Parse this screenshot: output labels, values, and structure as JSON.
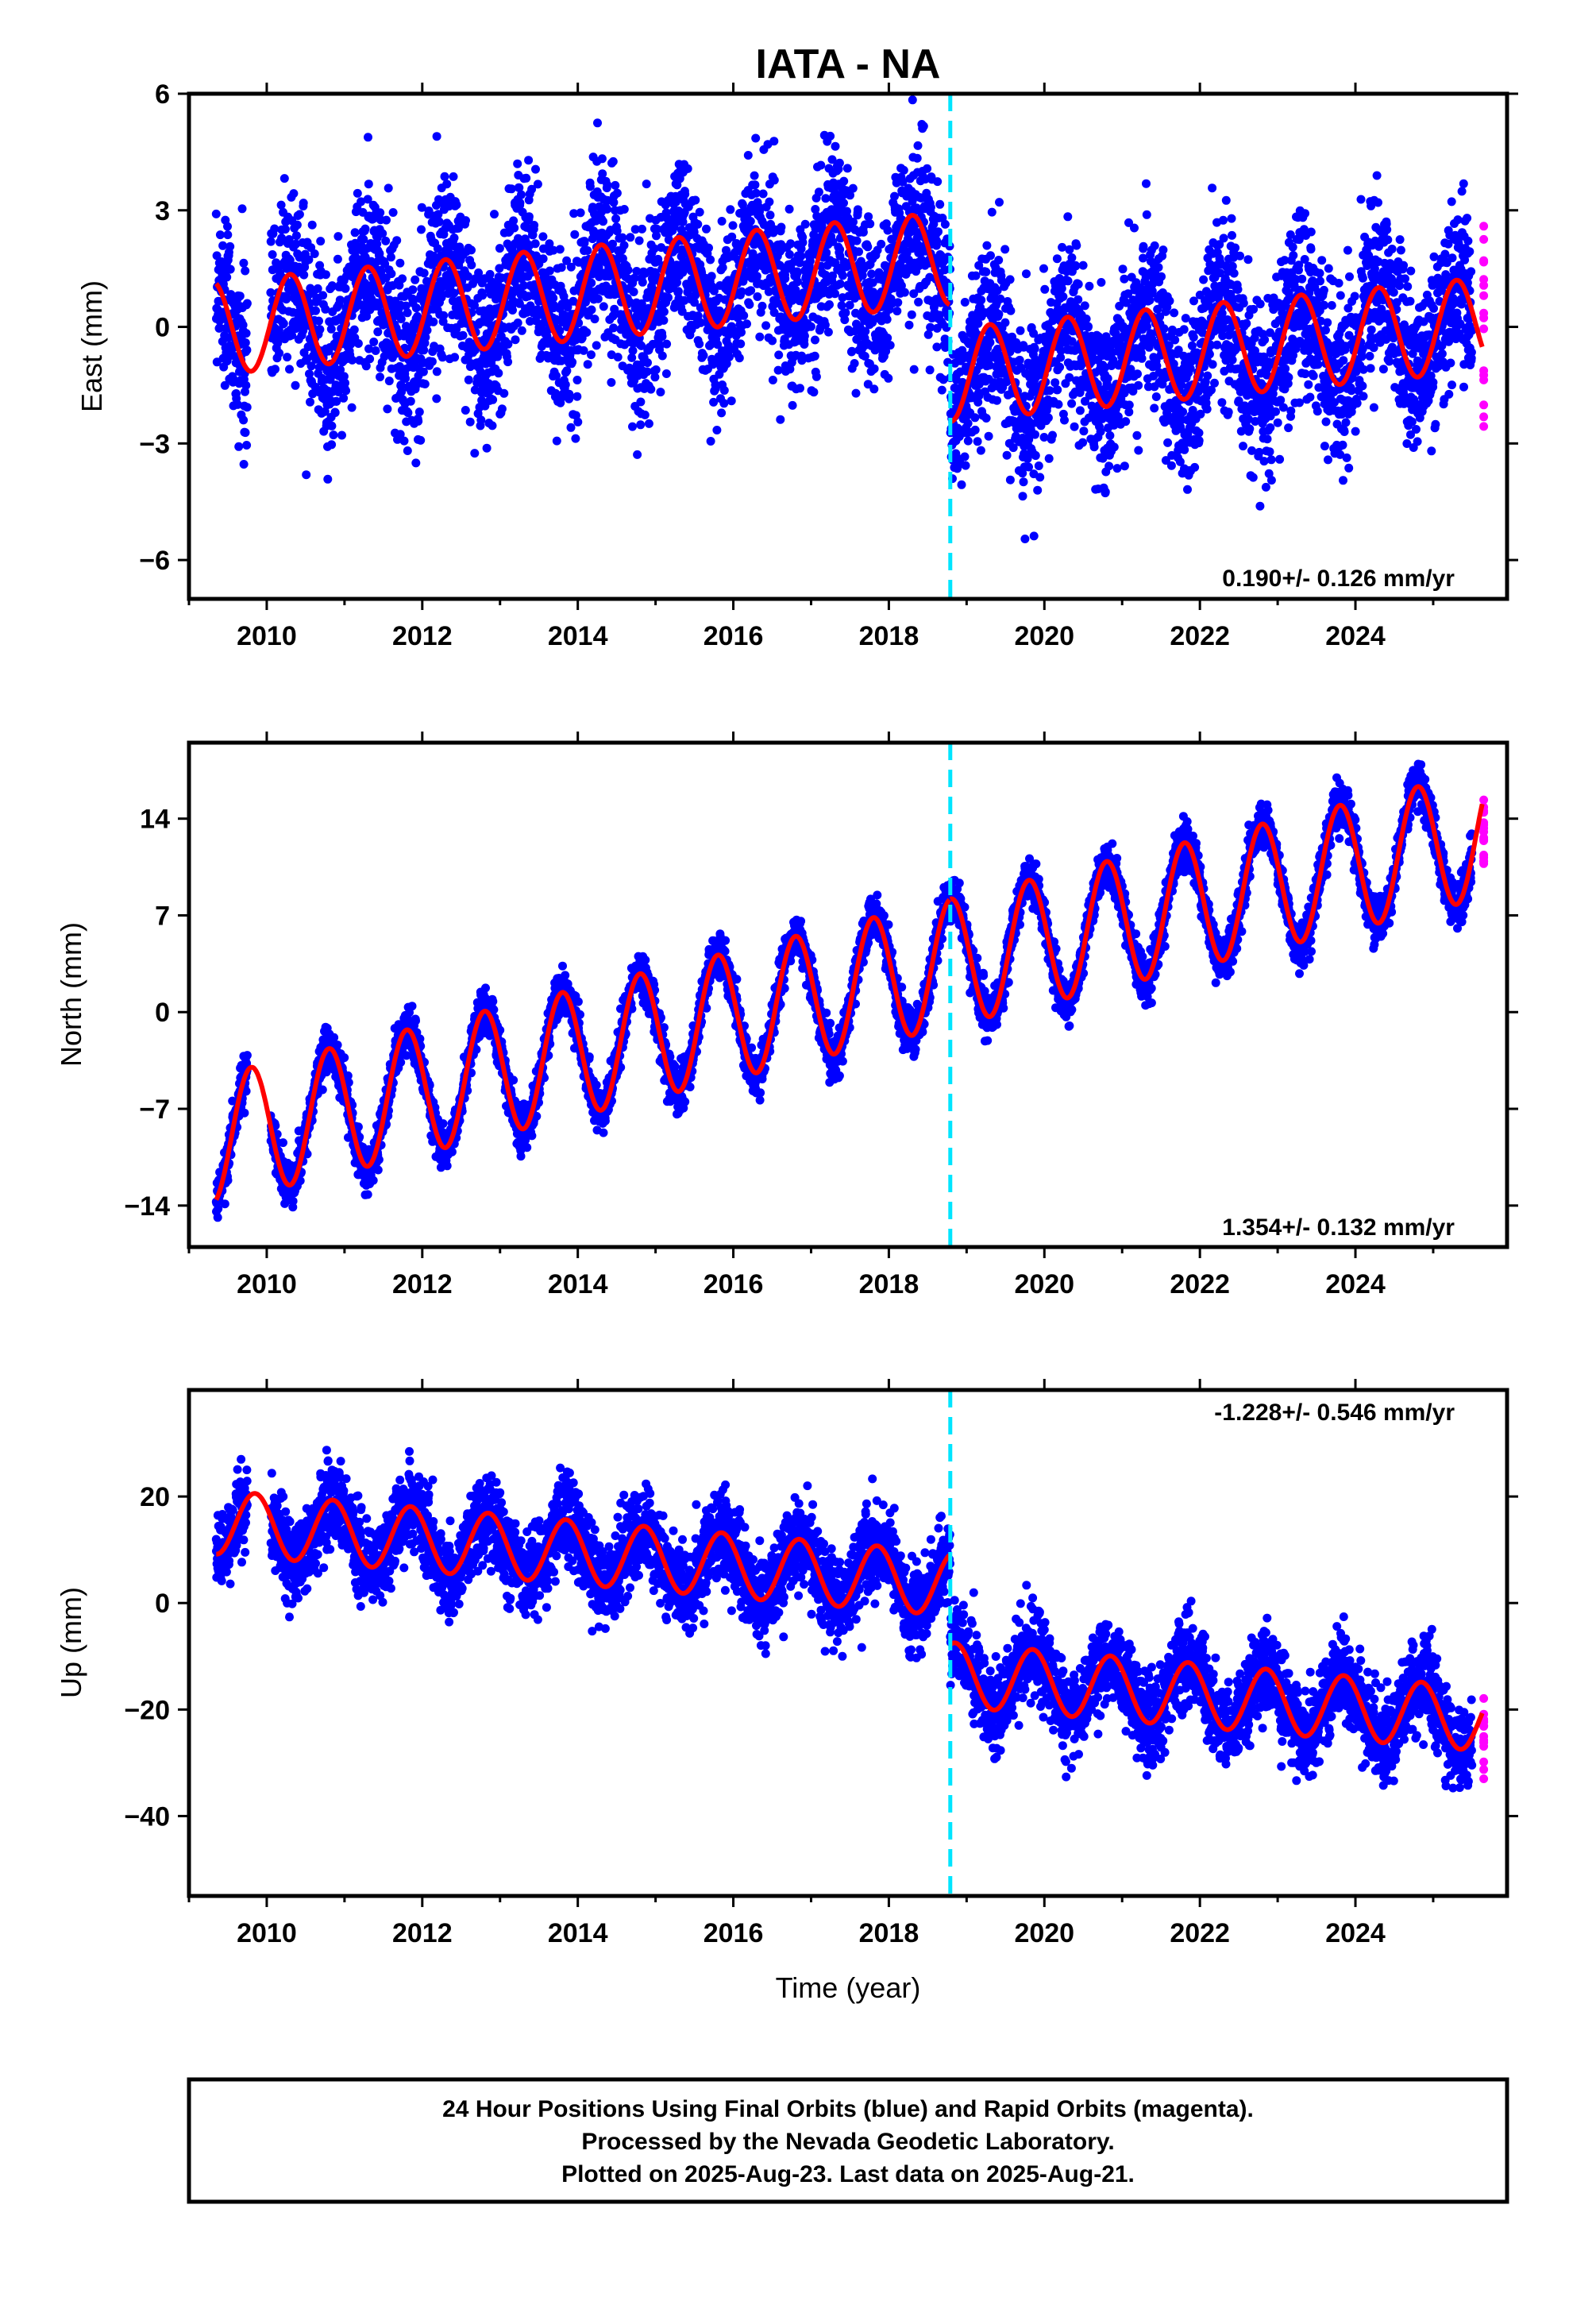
{
  "title": "IATA - NA",
  "colors": {
    "final_orbits": "#0000ff",
    "rapid_orbits": "#ff00ff",
    "model_fit": "#ff0000",
    "equipment_change": "#00e5ff"
  },
  "chart_data": [
    {
      "type": "scatter",
      "component": "east",
      "ylabel": "East (mm)",
      "xlim": [
        2009.0,
        2025.95
      ],
      "ylim": [
        -7.0,
        6.0
      ],
      "yticks": [
        6,
        3,
        0,
        -3,
        -6
      ],
      "xticks": [
        2010,
        2012,
        2014,
        2016,
        2018,
        2020,
        2022,
        2024
      ],
      "rate_label": "0.190+/- 0.126 mm/yr",
      "data_start": 2009.35,
      "data_end": 2025.63,
      "rapid_start": 2025.5,
      "step_epoch": 2018.79,
      "model": {
        "pre_intercept": 0.0,
        "pre_slope": 0.19,
        "post_offset": -3.0,
        "annual_amplitude": 1.2,
        "annual_phase": 0.05,
        "scatter_sigma": 1.1
      },
      "grid": false
    },
    {
      "type": "scatter",
      "component": "north",
      "ylabel": "North (mm)",
      "xlim": [
        2009.0,
        2025.95
      ],
      "ylim": [
        -17.0,
        19.5
      ],
      "yticks": [
        14,
        7,
        0,
        -7,
        -14
      ],
      "xticks": [
        2010,
        2012,
        2014,
        2016,
        2018,
        2020,
        2022,
        2024
      ],
      "rate_label": "1.354+/- 0.132 mm/yr",
      "data_start": 2009.35,
      "data_end": 2025.63,
      "rapid_start": 2025.5,
      "step_epoch": 2018.79,
      "model": {
        "pre_intercept": -9.0,
        "pre_slope": 1.354,
        "post_offset": 0.0,
        "annual_amplitude": 4.6,
        "annual_phase": 0.55,
        "scatter_sigma": 0.8
      },
      "grid": false
    },
    {
      "type": "scatter",
      "component": "up",
      "ylabel": "Up (mm)",
      "xlim": [
        2009.0,
        2025.95
      ],
      "ylim": [
        -55.0,
        40.0
      ],
      "yticks": [
        20,
        0,
        -20,
        -40
      ],
      "xticks": [
        2010,
        2012,
        2014,
        2016,
        2018,
        2020,
        2022,
        2024
      ],
      "rate_label": "-1.228+/- 0.546 mm/yr",
      "data_start": 2009.35,
      "data_end": 2025.63,
      "rapid_start": 2025.5,
      "step_epoch": 2018.79,
      "model": {
        "pre_intercept": 15.0,
        "pre_slope": -1.228,
        "post_offset": -17.0,
        "annual_amplitude": 6.0,
        "annual_phase": 0.6,
        "scatter_sigma": 4.0
      },
      "grid": false
    }
  ],
  "xlabel": "Time (year)",
  "footer": {
    "line1": "24 Hour Positions Using Final Orbits (blue) and Rapid Orbits (magenta).",
    "line2": "Processed by the Nevada Geodetic Laboratory.",
    "line3": "Plotted on 2025-Aug-23. Last data on 2025-Aug-21."
  }
}
